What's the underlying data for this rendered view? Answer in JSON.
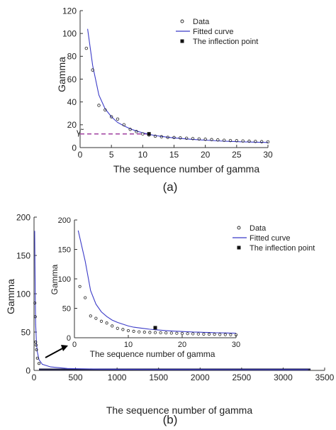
{
  "chart_data": [
    {
      "panel_label": "(a)",
      "type": "scatter",
      "xlabel": "The sequence number of gamma",
      "ylabel": "Gamma",
      "xlim": [
        0,
        30
      ],
      "ylim": [
        0,
        120
      ],
      "xticks": [
        0,
        5,
        10,
        15,
        20,
        25,
        30
      ],
      "yticks": [
        0,
        20,
        40,
        60,
        80,
        100,
        120
      ],
      "gamma_marker_label": "γ̃",
      "legend": {
        "placement": "top-right",
        "entries": [
          "Data",
          "Fitted curve",
          "The inflection point"
        ]
      },
      "series": [
        {
          "name": "Data",
          "kind": "points",
          "x": [
            1,
            2,
            3,
            4,
            5,
            6,
            7,
            8,
            9,
            10,
            11,
            12,
            13,
            14,
            15,
            16,
            17,
            18,
            19,
            20,
            21,
            22,
            23,
            24,
            25,
            26,
            27,
            28,
            29,
            30
          ],
          "y": [
            87,
            68,
            37,
            33,
            27,
            25,
            20,
            16,
            14,
            12,
            11,
            10,
            9.5,
            9,
            8.8,
            8.5,
            8.2,
            7.9,
            7.6,
            7.3,
            7,
            6.7,
            6.4,
            6.2,
            6,
            5.8,
            5.6,
            5.4,
            5.2,
            5
          ]
        },
        {
          "name": "Fitted curve",
          "kind": "line",
          "x_start": 1.2,
          "x_end": 30,
          "y": [
            104,
            72,
            46,
            34,
            27,
            22,
            19,
            16.5,
            14.5,
            13,
            11.6,
            10.6,
            9.8,
            9.1,
            8.5,
            8,
            7.6,
            7.2,
            6.8,
            6.5,
            6.2,
            5.9,
            5.6,
            5.4,
            5.2,
            5,
            4.9,
            4.7,
            4.6,
            4.5
          ]
        },
        {
          "name": "The inflection point",
          "kind": "marker",
          "x": 11,
          "y": 12
        }
      ],
      "reference_line": {
        "y": 12,
        "x_from": 0,
        "x_to": 11,
        "color": "#a040a0"
      }
    },
    {
      "panel_label": "(b)",
      "type": "scatter",
      "xlabel": "The sequence number of gamma",
      "ylabel": "Gamma",
      "xlim": [
        0,
        3500
      ],
      "ylim": [
        0,
        200
      ],
      "xticks": [
        0,
        500,
        1000,
        1500,
        2000,
        2500,
        3000,
        3500
      ],
      "yticks": [
        0,
        50,
        100,
        150,
        200
      ],
      "series": [
        {
          "name": "Data",
          "kind": "points",
          "x": [
            10,
            15,
            20,
            25,
            30,
            40,
            60
          ],
          "y": [
            88,
            70,
            37,
            33,
            27,
            16,
            9
          ]
        },
        {
          "name": "Fitted curve",
          "kind": "line",
          "x": [
            8,
            10,
            15,
            20,
            30,
            40,
            60,
            100,
            200,
            400,
            800,
            1500,
            2500,
            3300
          ],
          "y": [
            182,
            150,
            90,
            60,
            35,
            24,
            14,
            8,
            4.5,
            2.5,
            1.6,
            1.1,
            0.9,
            0.8
          ]
        }
      ],
      "dense_tail": {
        "x_from": 60,
        "x_to": 3330,
        "y": 1
      }
    },
    {
      "panel_label": "(b) inset",
      "type": "scatter",
      "xlabel": "The sequence number of gamma",
      "ylabel": "Gamma",
      "xlim": [
        0,
        30
      ],
      "ylim": [
        0,
        200
      ],
      "xticks": [
        0,
        10,
        20,
        30
      ],
      "yticks": [
        0,
        50,
        100,
        150,
        200
      ],
      "legend": {
        "placement": "top-right",
        "entries": [
          "Data",
          "Fitted curve",
          "The inflection point"
        ]
      },
      "series": [
        {
          "name": "Data",
          "kind": "points",
          "x": [
            1,
            2,
            3,
            4,
            5,
            6,
            7,
            8,
            9,
            10,
            11,
            12,
            13,
            14,
            15,
            16,
            17,
            18,
            19,
            20,
            21,
            22,
            23,
            24,
            25,
            26,
            27,
            28,
            29,
            30
          ],
          "y": [
            87,
            68,
            37,
            33,
            28,
            25,
            20,
            16,
            14,
            12,
            11,
            10,
            9.5,
            9,
            8.8,
            8.5,
            8.2,
            7.9,
            7.6,
            7.3,
            7,
            6.7,
            6.4,
            6.2,
            6,
            5.8,
            5.6,
            5.4,
            5.2,
            5
          ]
        },
        {
          "name": "Fitted curve",
          "kind": "line",
          "x_start": 0.7,
          "x_end": 30,
          "y": [
            182,
            130,
            80,
            57,
            44,
            36,
            30,
            26,
            23,
            20,
            18,
            16.7,
            15.5,
            14.5,
            13.6,
            12.9,
            12.2,
            11.6,
            11.1,
            10.6,
            10.2,
            9.8,
            9.5,
            9.2,
            8.9,
            8.6,
            8.4,
            8.2,
            8,
            7.8
          ]
        },
        {
          "name": "The inflection point",
          "kind": "marker",
          "x": 15,
          "y": 17
        }
      ]
    }
  ],
  "colors": {
    "fit": "#3b3bc8",
    "reference": "#a040a0",
    "marker": "#111111",
    "axis": "#333333"
  }
}
